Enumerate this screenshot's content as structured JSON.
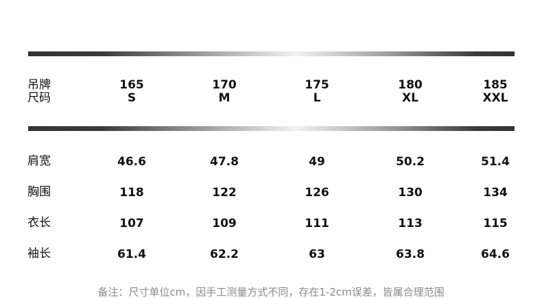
{
  "header": {
    "label_line1": "吊牌",
    "label_line2": "尺码",
    "sizes": [
      {
        "height": "165",
        "size": "S"
      },
      {
        "height": "170",
        "size": "M"
      },
      {
        "height": "175",
        "size": "L"
      },
      {
        "height": "180",
        "size": "XL"
      },
      {
        "height": "185",
        "size": "XXL"
      }
    ]
  },
  "rows": [
    {
      "label": "肩宽",
      "values": [
        "46.6",
        "47.8",
        "49",
        "50.2",
        "51.4"
      ]
    },
    {
      "label": "胸围",
      "values": [
        "118",
        "122",
        "126",
        "130",
        "134"
      ]
    },
    {
      "label": "衣长",
      "values": [
        "107",
        "109",
        "111",
        "113",
        "115"
      ]
    },
    {
      "label": "袖长",
      "values": [
        "61.4",
        "62.2",
        "63",
        "63.8",
        "64.6"
      ]
    }
  ],
  "note": "备注：尺寸单位cm，因手工测量方式不同，存在1-2cm误差，皆属合理范围"
}
